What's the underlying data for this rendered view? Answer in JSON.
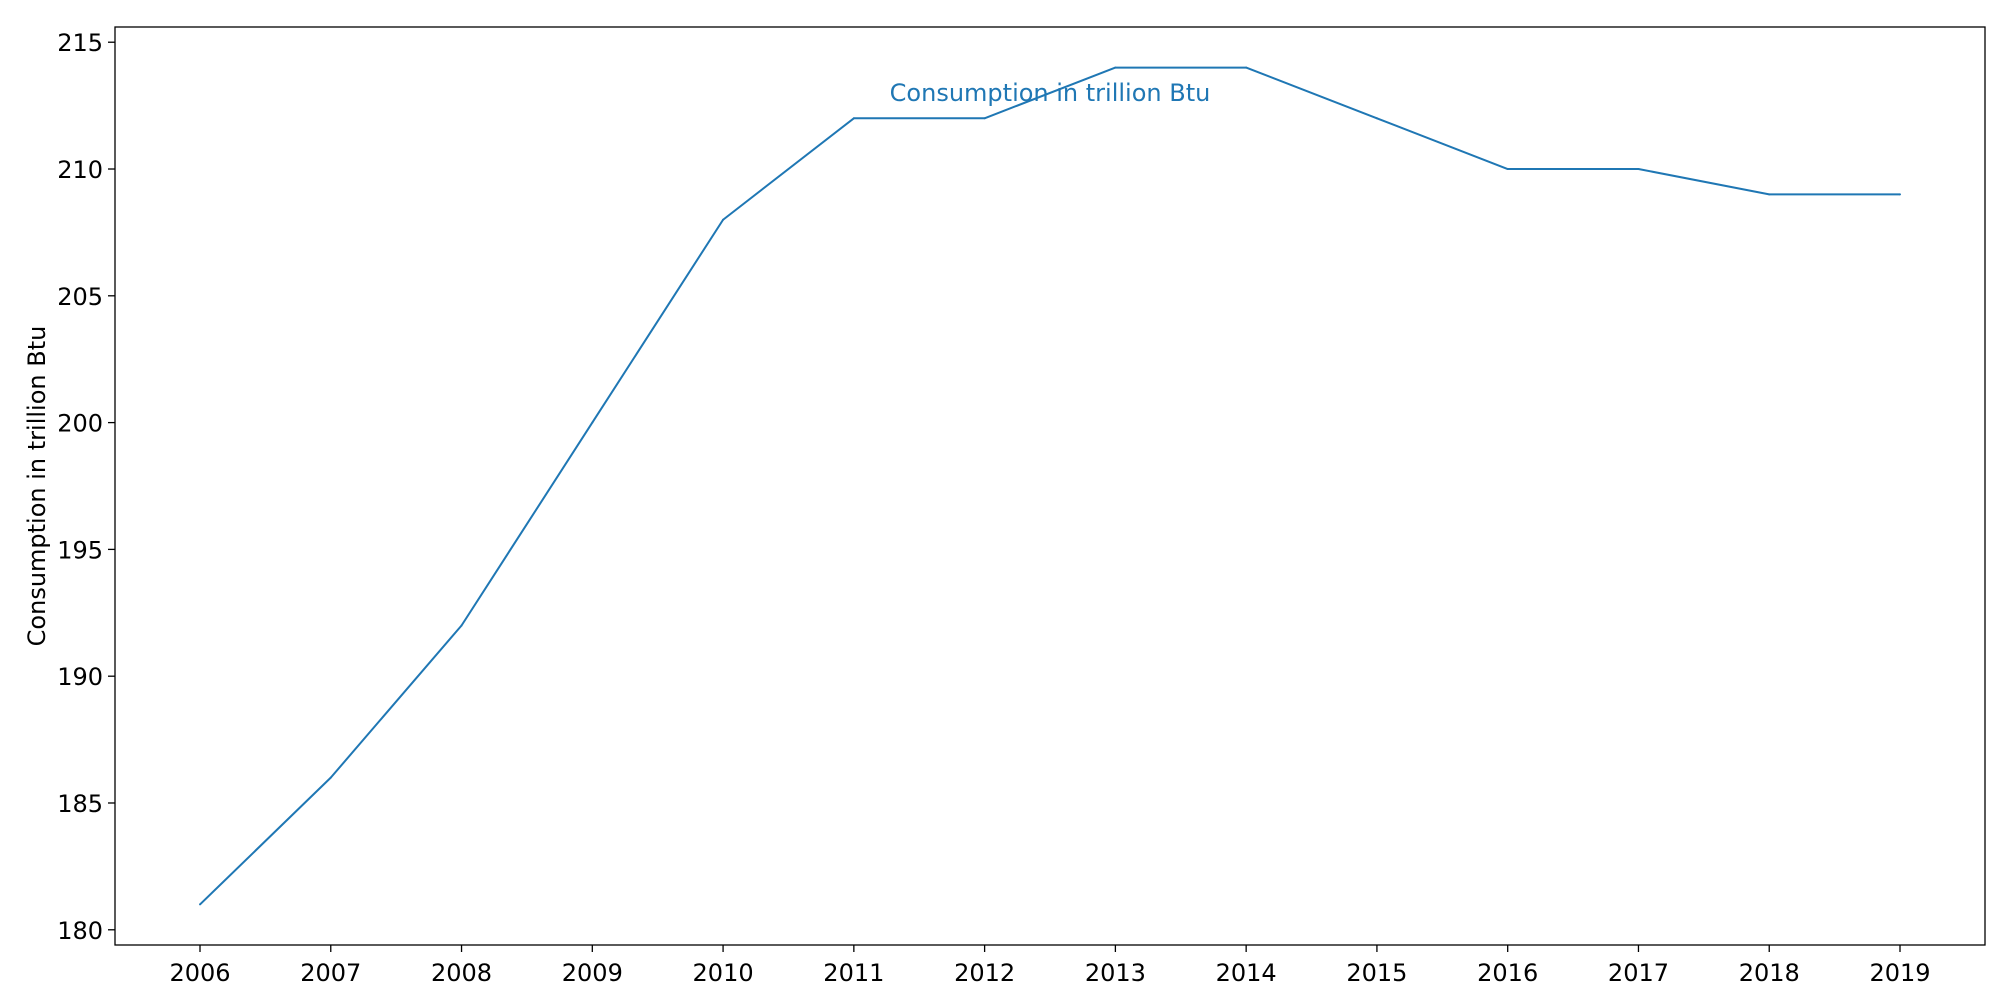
{
  "chart_data": {
    "type": "line",
    "title": "",
    "xlabel": "",
    "ylabel": "Consumption in trillion Btu",
    "x": [
      2006,
      2007,
      2008,
      2009,
      2010,
      2011,
      2012,
      2013,
      2014,
      2015,
      2016,
      2017,
      2018,
      2019
    ],
    "series": [
      {
        "name": "Consumption in trillion Btu",
        "color": "#1f77b4",
        "values": [
          181,
          186,
          192,
          200,
          208,
          212,
          212,
          214,
          214,
          212,
          210,
          210,
          209,
          209
        ]
      }
    ],
    "xlim": [
      2005.35,
      2019.65
    ],
    "ylim": [
      179.4,
      215.6
    ],
    "xticks": [
      "2006",
      "2007",
      "2008",
      "2009",
      "2010",
      "2011",
      "2012",
      "2013",
      "2014",
      "2015",
      "2016",
      "2017",
      "2018",
      "2019"
    ],
    "yticks": [
      "180",
      "185",
      "190",
      "195",
      "200",
      "205",
      "210",
      "215"
    ],
    "grid": false,
    "legend": "none"
  }
}
